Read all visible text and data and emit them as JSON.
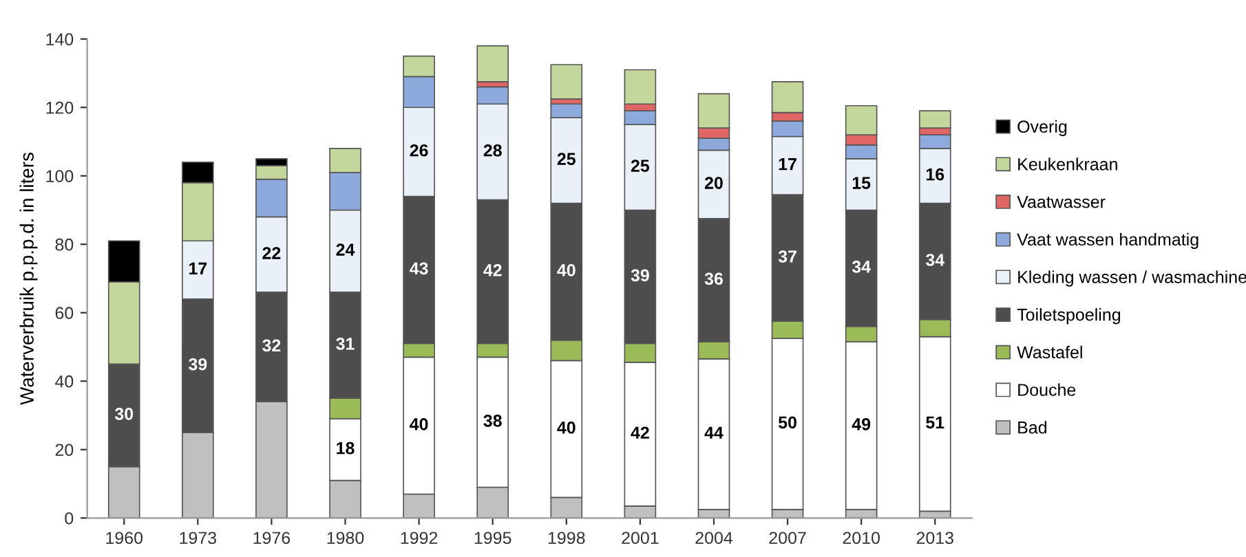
{
  "chart_data": {
    "type": "bar",
    "stacked": true,
    "ylabel": "Waterverbruik p.p.p.d. in liters",
    "categories": [
      "1960",
      "1973",
      "1976",
      "1980",
      "1992",
      "1995",
      "1998",
      "2001",
      "2004",
      "2007",
      "2010",
      "2013"
    ],
    "ylim": [
      0,
      140
    ],
    "yticks": [
      0,
      20,
      40,
      60,
      80,
      100,
      120,
      140
    ],
    "grid": false,
    "legend": "right",
    "series": [
      {
        "name": "Bad",
        "color": "#c0c0c0",
        "values": [
          15,
          25,
          34,
          11,
          7,
          9,
          6,
          3.5,
          2.5,
          2.5,
          2.5,
          2
        ],
        "value_labels": [
          null,
          null,
          null,
          null,
          null,
          null,
          null,
          null,
          null,
          null,
          null,
          null
        ]
      },
      {
        "name": "Douche",
        "color": "#ffffff",
        "values": [
          null,
          null,
          null,
          18,
          40,
          38,
          40,
          42,
          44,
          50,
          49,
          51
        ],
        "value_labels": [
          null,
          null,
          null,
          "18",
          "40",
          "38",
          "40",
          "42",
          "44",
          "50",
          "49",
          "51"
        ]
      },
      {
        "name": "Wastafel",
        "color": "#9bbb59",
        "values": [
          null,
          null,
          null,
          6,
          4,
          4,
          6,
          5.5,
          5,
          5,
          4.5,
          5
        ],
        "value_labels": [
          null,
          null,
          null,
          null,
          null,
          null,
          null,
          null,
          null,
          null,
          null,
          null
        ]
      },
      {
        "name": "Toiletspoeling",
        "color": "#4d4d4d",
        "values": [
          30,
          39,
          32,
          31,
          43,
          42,
          40,
          39,
          36,
          37,
          34,
          34
        ],
        "value_labels": [
          "30",
          "39",
          "32",
          "31",
          "43",
          "42",
          "40",
          "39",
          "36",
          "37",
          "34",
          "34"
        ]
      },
      {
        "name": "Kleding wassen / wasmachine",
        "color": "#eaf0f8",
        "values": [
          null,
          17,
          22,
          24,
          26,
          28,
          25,
          25,
          20,
          17,
          15,
          16
        ],
        "value_labels": [
          null,
          "17",
          "22",
          "24",
          "26",
          "28",
          "25",
          "25",
          "20",
          "17",
          "15",
          "16"
        ]
      },
      {
        "name": "Vaat wassen handmatig",
        "color": "#8ea9db",
        "values": [
          null,
          null,
          11,
          11,
          9,
          5,
          4,
          4,
          3.5,
          4.5,
          4,
          4
        ],
        "value_labels": [
          null,
          null,
          null,
          null,
          null,
          null,
          null,
          null,
          null,
          null,
          null,
          null
        ]
      },
      {
        "name": "Vaatwasser",
        "color": "#e06666",
        "values": [
          null,
          null,
          null,
          null,
          null,
          1.5,
          1.5,
          2,
          3,
          2.5,
          3,
          2
        ],
        "value_labels": [
          null,
          null,
          null,
          null,
          null,
          null,
          null,
          null,
          null,
          null,
          null,
          null
        ]
      },
      {
        "name": "Keukenkraan",
        "color": "#c3d69b",
        "values": [
          24,
          17,
          4,
          7,
          6,
          10.5,
          10,
          10,
          10,
          9,
          8.5,
          5
        ],
        "value_labels": [
          null,
          null,
          null,
          null,
          null,
          null,
          null,
          null,
          null,
          null,
          null,
          null
        ]
      },
      {
        "name": "Overig",
        "color": "#000000",
        "values": [
          12,
          6,
          2,
          null,
          null,
          null,
          null,
          null,
          null,
          null,
          null,
          null
        ],
        "value_labels": [
          null,
          null,
          null,
          null,
          null,
          null,
          null,
          null,
          null,
          null,
          null,
          null
        ]
      }
    ]
  }
}
